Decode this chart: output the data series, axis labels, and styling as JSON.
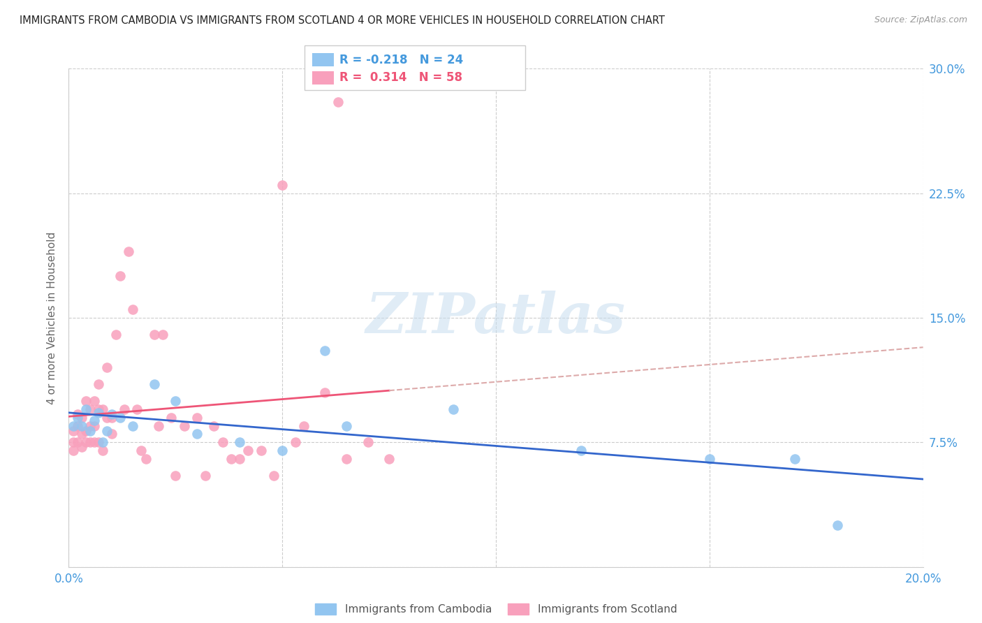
{
  "title": "IMMIGRANTS FROM CAMBODIA VS IMMIGRANTS FROM SCOTLAND 4 OR MORE VEHICLES IN HOUSEHOLD CORRELATION CHART",
  "source": "Source: ZipAtlas.com",
  "ylabel": "4 or more Vehicles in Household",
  "xlim": [
    0.0,
    0.2
  ],
  "ylim": [
    0.0,
    0.3
  ],
  "xticks": [
    0.0,
    0.05,
    0.1,
    0.15,
    0.2
  ],
  "xtick_labels": [
    "0.0%",
    "",
    "",
    "",
    "20.0%"
  ],
  "yticks": [
    0.0,
    0.075,
    0.15,
    0.225,
    0.3
  ],
  "ytick_labels": [
    "",
    "7.5%",
    "15.0%",
    "22.5%",
    "30.0%"
  ],
  "legend_r_cambodia": "-0.218",
  "legend_n_cambodia": "24",
  "legend_r_scotland": "0.314",
  "legend_n_scotland": "58",
  "cambodia_color": "#92C5F0",
  "scotland_color": "#F8A0BC",
  "trend_cambodia_color": "#3366CC",
  "trend_scotland_color": "#EE5577",
  "trend_scotland_dash_color": "#DDAAAA",
  "grid_color": "#CCCCCC",
  "background_color": "#FFFFFF",
  "axis_label_color": "#666666",
  "tick_color": "#4499DD",
  "watermark": "ZIPatlas",
  "cambodia_color_legend": "#92C5F0",
  "scotland_color_legend": "#F8A0BC",
  "cambodia_x": [
    0.001,
    0.002,
    0.003,
    0.004,
    0.005,
    0.006,
    0.007,
    0.008,
    0.009,
    0.01,
    0.012,
    0.015,
    0.02,
    0.025,
    0.03,
    0.04,
    0.05,
    0.06,
    0.065,
    0.09,
    0.12,
    0.15,
    0.17,
    0.18
  ],
  "cambodia_y": [
    0.085,
    0.09,
    0.085,
    0.095,
    0.082,
    0.088,
    0.093,
    0.075,
    0.082,
    0.092,
    0.09,
    0.085,
    0.11,
    0.1,
    0.08,
    0.075,
    0.07,
    0.13,
    0.085,
    0.095,
    0.07,
    0.065,
    0.065,
    0.025
  ],
  "scotland_x": [
    0.001,
    0.001,
    0.001,
    0.002,
    0.002,
    0.002,
    0.003,
    0.003,
    0.003,
    0.004,
    0.004,
    0.004,
    0.005,
    0.005,
    0.005,
    0.006,
    0.006,
    0.006,
    0.007,
    0.007,
    0.007,
    0.008,
    0.008,
    0.009,
    0.009,
    0.01,
    0.01,
    0.011,
    0.012,
    0.013,
    0.014,
    0.015,
    0.016,
    0.017,
    0.018,
    0.02,
    0.021,
    0.022,
    0.024,
    0.025,
    0.027,
    0.03,
    0.032,
    0.034,
    0.036,
    0.038,
    0.04,
    0.042,
    0.045,
    0.048,
    0.05,
    0.053,
    0.055,
    0.06,
    0.063,
    0.065,
    0.07,
    0.075
  ],
  "scotland_y": [
    0.075,
    0.082,
    0.07,
    0.085,
    0.092,
    0.075,
    0.09,
    0.072,
    0.08,
    0.1,
    0.082,
    0.075,
    0.095,
    0.075,
    0.085,
    0.1,
    0.085,
    0.075,
    0.11,
    0.075,
    0.095,
    0.095,
    0.07,
    0.12,
    0.09,
    0.09,
    0.08,
    0.14,
    0.175,
    0.095,
    0.19,
    0.155,
    0.095,
    0.07,
    0.065,
    0.14,
    0.085,
    0.14,
    0.09,
    0.055,
    0.085,
    0.09,
    0.055,
    0.085,
    0.075,
    0.065,
    0.065,
    0.07,
    0.07,
    0.055,
    0.23,
    0.075,
    0.085,
    0.105,
    0.28,
    0.065,
    0.075,
    0.065
  ],
  "scot_trend_x_start": 0.0,
  "scot_trend_x_solid_end": 0.075,
  "scot_trend_x_dash_end": 0.2,
  "cam_trend_x_start": 0.0,
  "cam_trend_x_end": 0.2
}
